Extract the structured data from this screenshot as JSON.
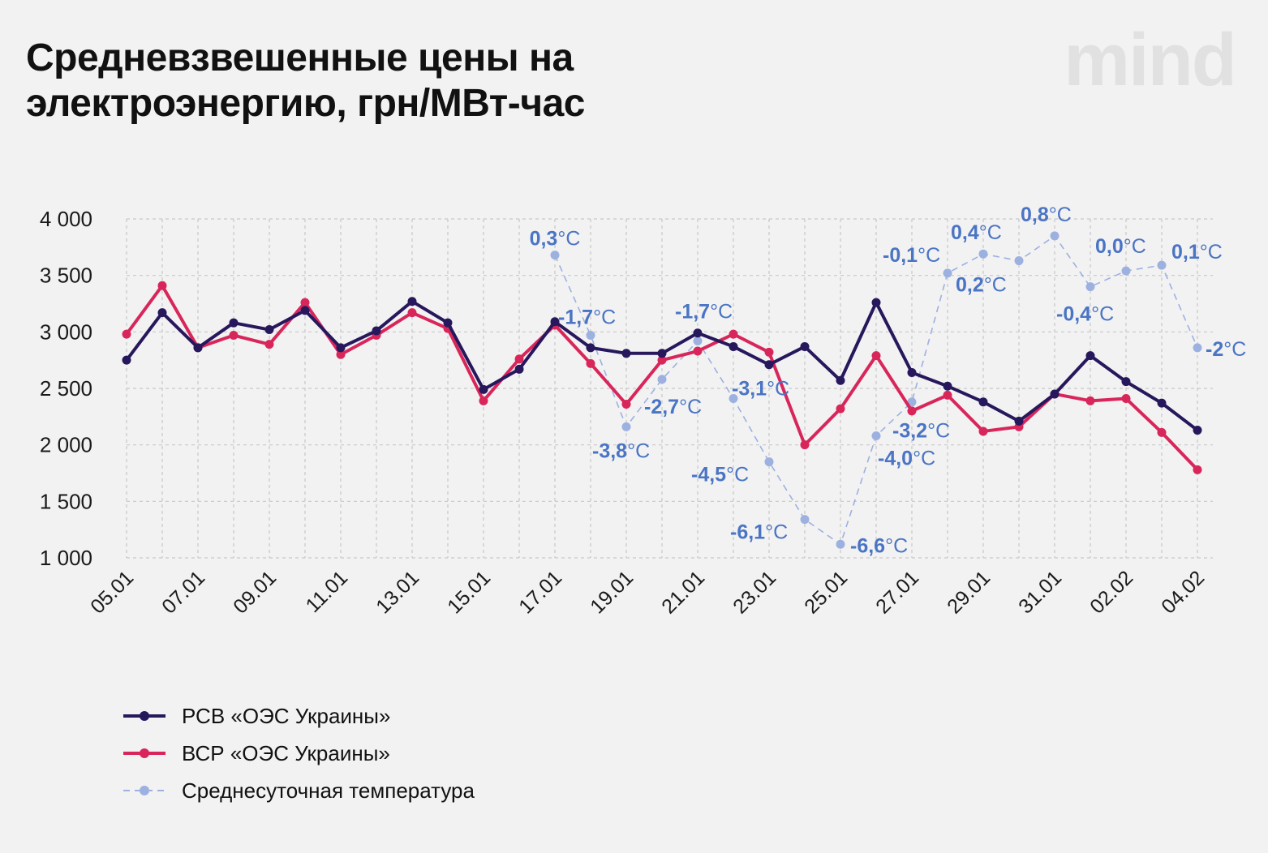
{
  "title_lines": [
    "Средневзвешенные цены на",
    "электроэнергию, грн/МВт-час"
  ],
  "logo": "mind",
  "colors": {
    "rsv": "#27175c",
    "vsr": "#d8265b",
    "temp": "#9db1e0",
    "temp_label": "#4a74c4",
    "grid": "#c8c8c8",
    "background": "#f2f2f2"
  },
  "chart_data": {
    "type": "line",
    "title": "Средневзвешенные цены на электроэнергию, грн/МВт-час",
    "ylim": [
      1000,
      4000
    ],
    "y_ticks": [
      1000,
      1500,
      2000,
      2500,
      3000,
      3500,
      4000
    ],
    "y_tick_labels": [
      "1 000",
      "1 500",
      "2 000",
      "2 500",
      "3 000",
      "3 500",
      "4 000"
    ],
    "x": [
      "05.01",
      "06.01",
      "07.01",
      "08.01",
      "09.01",
      "10.01",
      "11.01",
      "12.01",
      "13.01",
      "14.01",
      "15.01",
      "16.01",
      "17.01",
      "18.01",
      "19.01",
      "20.01",
      "21.01",
      "22.01",
      "23.01",
      "24.01",
      "25.01",
      "26.01",
      "27.01",
      "28.01",
      "29.01",
      "30.01",
      "31.01",
      "01.02",
      "02.02",
      "03.02",
      "04.02"
    ],
    "x_tick_labels": [
      "05.01",
      "07.01",
      "09.01",
      "11.01",
      "13.01",
      "15.01",
      "17.01",
      "19.01",
      "21.01",
      "23.01",
      "25.01",
      "27.01",
      "29.01",
      "31.01",
      "02.02",
      "04.02"
    ],
    "grid": true,
    "legend_position": "bottom-left",
    "series": [
      {
        "name": "РСВ «ОЭС Украины»",
        "style": "solid",
        "values": [
          2750,
          3170,
          2860,
          3080,
          3020,
          3190,
          2860,
          3010,
          3270,
          3080,
          2490,
          2670,
          3090,
          2860,
          2810,
          2810,
          2990,
          2870,
          2710,
          2870,
          2570,
          3260,
          2640,
          2520,
          2380,
          2210,
          2450,
          2790,
          2560,
          2370,
          2130
        ]
      },
      {
        "name": "ВСР «ОЭС Украины»",
        "style": "solid",
        "values": [
          2980,
          3410,
          2860,
          2970,
          2890,
          3260,
          2800,
          2970,
          3170,
          3030,
          2390,
          2760,
          3060,
          2720,
          2360,
          2750,
          2830,
          2980,
          2820,
          2000,
          2320,
          2790,
          2300,
          2440,
          2120,
          2160,
          2450,
          2390,
          2410,
          2110,
          1780
        ]
      },
      {
        "name": "Среднесуточная температура",
        "style": "dashed",
        "values": [
          null,
          null,
          null,
          null,
          null,
          null,
          null,
          null,
          null,
          null,
          null,
          null,
          3680,
          2970,
          2160,
          2580,
          2920,
          2410,
          1850,
          1340,
          1120,
          2080,
          2380,
          3520,
          3690,
          3630,
          3850,
          3400,
          3540,
          3590,
          2860
        ],
        "annotations": [
          null,
          null,
          null,
          null,
          null,
          null,
          null,
          null,
          null,
          null,
          null,
          null,
          "0,3",
          "-1,7",
          "-3,8",
          "-2,7",
          "-1,7",
          "-3,1",
          "-4,5",
          "-6,1",
          "-6,6",
          "-4,0",
          "-3,2",
          "-0,1",
          "0,4",
          "0,2",
          "0,8",
          "-0,4",
          "0,0",
          "0,1",
          "-2"
        ],
        "annotation_unit": "°C"
      }
    ]
  },
  "legend": [
    {
      "label": "РСВ «ОЭС Украины»"
    },
    {
      "label": "ВСР «ОЭС Украины»"
    },
    {
      "label": "Среднесуточная температура"
    }
  ]
}
